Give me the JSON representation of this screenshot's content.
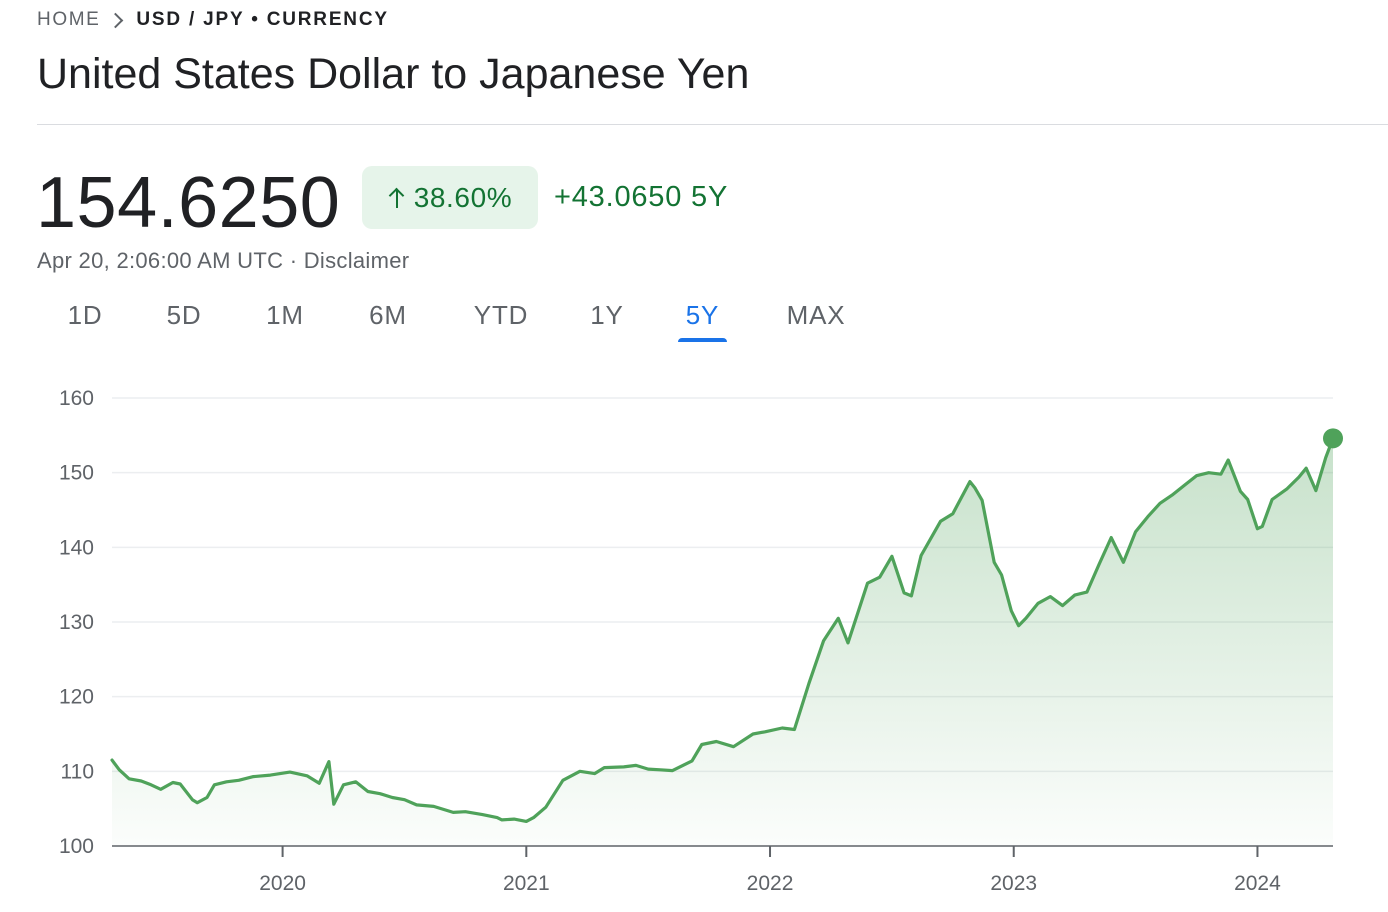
{
  "breadcrumb": {
    "home": "HOME",
    "pair": "USD / JPY • CURRENCY"
  },
  "title": "United States Dollar to Japanese Yen",
  "quote": {
    "price": "154.6250",
    "change_percent": "38.60%",
    "change_abs": "+43.0650 5Y",
    "timestamp": "Apr 20, 2:06:00 AM UTC",
    "separator": " · ",
    "disclaimer": "Disclaimer"
  },
  "tabs": [
    {
      "label": "1D",
      "active": false
    },
    {
      "label": "5D",
      "active": false
    },
    {
      "label": "1M",
      "active": false
    },
    {
      "label": "6M",
      "active": false
    },
    {
      "label": "YTD",
      "active": false
    },
    {
      "label": "1Y",
      "active": false
    },
    {
      "label": "5Y",
      "active": true
    },
    {
      "label": "MAX",
      "active": false
    }
  ],
  "colors": {
    "line": "#4fa25a",
    "positive": "#137333",
    "positive_bg": "#e6f4ea",
    "accent": "#1a73e8"
  },
  "chart_data": {
    "type": "area",
    "title": "",
    "xlabel": "",
    "ylabel": "",
    "ylim": [
      100,
      160
    ],
    "xlim": [
      2019.3,
      2024.31
    ],
    "y_ticks": [
      100,
      110,
      120,
      130,
      140,
      150,
      160
    ],
    "x_ticks": [
      {
        "value": 2020,
        "label": "2020"
      },
      {
        "value": 2021,
        "label": "2021"
      },
      {
        "value": 2022,
        "label": "2022"
      },
      {
        "value": 2023,
        "label": "2023"
      },
      {
        "value": 2024,
        "label": "2024"
      }
    ],
    "grid": true,
    "series": [
      {
        "x": [
          2019.3,
          2019.33,
          2019.37,
          2019.42,
          2019.46,
          2019.5,
          2019.55,
          2019.58,
          2019.63,
          2019.65,
          2019.69,
          2019.72,
          2019.77,
          2019.82,
          2019.88,
          2019.95,
          2020.03,
          2020.1,
          2020.15,
          2020.19,
          2020.21,
          2020.25,
          2020.3,
          2020.35,
          2020.4,
          2020.45,
          2020.5,
          2020.55,
          2020.62,
          2020.7,
          2020.75,
          2020.82,
          2020.88,
          2020.9,
          2020.95,
          2021.0,
          2021.03,
          2021.08,
          2021.15,
          2021.22,
          2021.28,
          2021.32,
          2021.4,
          2021.45,
          2021.5,
          2021.55,
          2021.6,
          2021.68,
          2021.72,
          2021.78,
          2021.85,
          2021.93,
          2021.98,
          2022.05,
          2022.1,
          2022.16,
          2022.22,
          2022.28,
          2022.32,
          2022.4,
          2022.45,
          2022.5,
          2022.55,
          2022.58,
          2022.62,
          2022.7,
          2022.75,
          2022.82,
          2022.84,
          2022.87,
          2022.92,
          2022.95,
          2022.99,
          2023.02,
          2023.05,
          2023.1,
          2023.15,
          2023.2,
          2023.25,
          2023.3,
          2023.35,
          2023.4,
          2023.45,
          2023.5,
          2023.55,
          2023.6,
          2023.65,
          2023.7,
          2023.75,
          2023.8,
          2023.85,
          2023.88,
          2023.93,
          2023.96,
          2024.0,
          2024.02,
          2024.06,
          2024.12,
          2024.17,
          2024.2,
          2024.24,
          2024.28,
          2024.31
        ],
        "y": [
          111.5,
          110.2,
          109,
          108.7,
          108.2,
          107.6,
          108.5,
          108.3,
          106.2,
          105.8,
          106.5,
          108.2,
          108.6,
          108.8,
          109.3,
          109.5,
          109.9,
          109.4,
          108.4,
          111.3,
          105.6,
          108.2,
          108.6,
          107.3,
          107,
          106.5,
          106.2,
          105.5,
          105.3,
          104.5,
          104.6,
          104.2,
          103.8,
          103.5,
          103.6,
          103.3,
          103.8,
          105.2,
          108.8,
          110,
          109.7,
          110.5,
          110.6,
          110.8,
          110.3,
          110.2,
          110.1,
          111.4,
          113.6,
          114,
          113.3,
          115,
          115.3,
          115.8,
          115.6,
          121.8,
          127.5,
          130.5,
          127.2,
          135.2,
          136,
          138.8,
          133.9,
          133.5,
          138.9,
          143.5,
          144.5,
          148.8,
          148,
          146.3,
          138,
          136.3,
          131.5,
          129.5,
          130.5,
          132.5,
          133.4,
          132.2,
          133.6,
          134,
          137.7,
          141.3,
          138,
          142.1,
          144.1,
          145.9,
          147,
          148.3,
          149.6,
          150,
          149.8,
          151.7,
          147.5,
          146.4,
          142.5,
          142.8,
          146.4,
          147.8,
          149.4,
          150.6,
          147.6,
          152,
          154.6
        ]
      }
    ]
  }
}
